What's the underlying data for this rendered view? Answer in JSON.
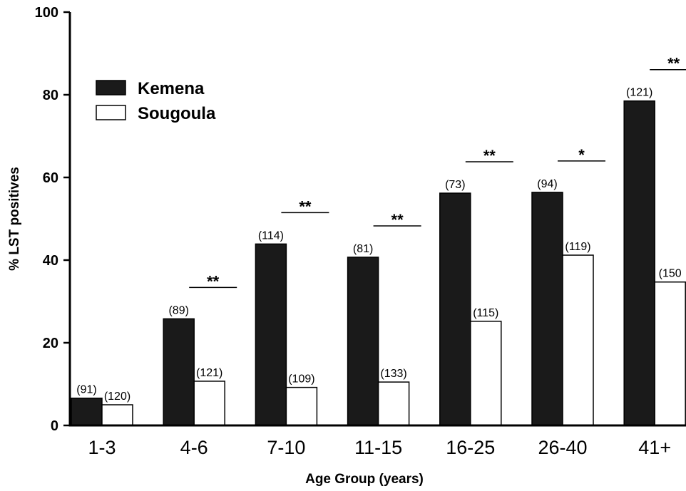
{
  "chart_data": {
    "type": "bar",
    "title": "",
    "xlabel": "Age  Group (years)",
    "ylabel": "% LST positives",
    "ylim": [
      0,
      100
    ],
    "yticks": [
      "0",
      "20",
      "40",
      "60",
      "80",
      "100"
    ],
    "categories": [
      "1-3",
      "4-6",
      "7-10",
      "11-15",
      "16-25",
      "26-40",
      "41+"
    ],
    "series": [
      {
        "name": "Kemena",
        "color": "#1a1a1a",
        "values": [
          6.6,
          25.8,
          43.9,
          40.7,
          56.2,
          56.4,
          78.5
        ],
        "labels": [
          "(91)",
          "(89)",
          "(114)",
          "(81)",
          "(73)",
          "(94)",
          "(121)"
        ]
      },
      {
        "name": "Sougoula",
        "color": "#ffffff",
        "values": [
          5.0,
          10.7,
          9.2,
          10.5,
          25.2,
          41.2,
          34.7
        ],
        "labels": [
          "(120)",
          "(121)",
          "(109)",
          "(133)",
          "(115)",
          "(119)",
          "(150"
        ]
      }
    ],
    "significance": [
      "",
      "**",
      "**",
      "**",
      "**",
      "*",
      "**"
    ],
    "legend_position": "top-left",
    "grid": false
  }
}
